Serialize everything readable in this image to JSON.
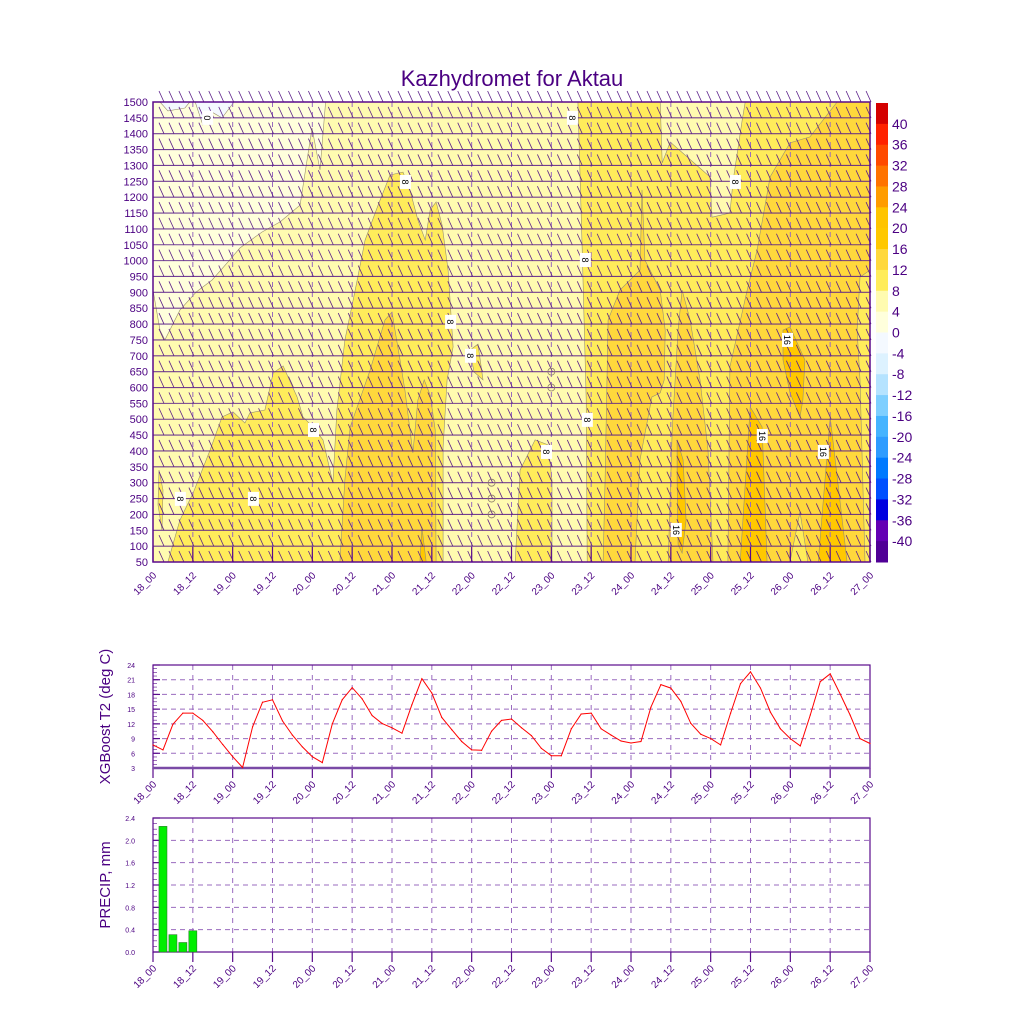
{
  "chart_data": [
    {
      "type": "heatmap",
      "subtype": "filled-contour-with-wind-barbs",
      "title": "Kazhydromet for Aktau",
      "x_tick_labels": [
        "18_00",
        "18_12",
        "19_00",
        "19_12",
        "20_00",
        "20_12",
        "21_00",
        "21_12",
        "22_00",
        "22_12",
        "23_00",
        "23_12",
        "24_00",
        "24_12",
        "25_00",
        "25_12",
        "26_00",
        "26_12",
        "27_00"
      ],
      "x_tick_step_hours": 12,
      "xlim_hours": [
        0,
        216
      ],
      "ylim": [
        50,
        1500
      ],
      "y_ticks": [
        50,
        100,
        150,
        200,
        250,
        300,
        350,
        400,
        450,
        500,
        550,
        600,
        650,
        700,
        750,
        800,
        850,
        900,
        950,
        1000,
        1050,
        1100,
        1150,
        1200,
        1250,
        1300,
        1350,
        1400,
        1450,
        1500
      ],
      "colorbar": {
        "labels": [
          "40",
          "36",
          "32",
          "28",
          "24",
          "20",
          "16",
          "12",
          "8",
          "4",
          "0",
          "-4",
          "-8",
          "-12",
          "-16",
          "-20",
          "-24",
          "-28",
          "-32",
          "-36",
          "-40"
        ],
        "colors": [
          "#d40000",
          "#ff2200",
          "#ff4a00",
          "#ff7300",
          "#ff9c00",
          "#ffc400",
          "#ffc800",
          "#ffd83c",
          "#ffec5a",
          "#fffbb0",
          "#ffffdc",
          "#f4f9ff",
          "#ddf2ff",
          "#b5e3ff",
          "#7ecfff",
          "#45b4ff",
          "#2e9cff",
          "#007aff",
          "#0050ff",
          "#0000e0",
          "#6400b4",
          "#500096"
        ]
      },
      "background_range": [
        4,
        8
      ],
      "contour_regions": [
        {
          "range": [
            0,
            4
          ],
          "polygons": [
            [
              [
                0,
                1500
              ],
              [
                52,
                1500
              ],
              [
                50.3,
                1286
              ],
              [
                47.9,
                1418
              ],
              [
                44.3,
                1175
              ],
              [
                38.3,
                1122
              ],
              [
                32.8,
                1090
              ],
              [
                26.2,
                1040
              ],
              [
                22.6,
                996
              ],
              [
                17.8,
                939
              ],
              [
                13,
                901
              ],
              [
                8.1,
                844
              ],
              [
                3.6,
                750
              ],
              [
                2.1,
                781
              ],
              [
                0,
                907
              ]
            ]
          ]
        },
        {
          "range": [
            -4,
            0
          ],
          "polygons": [
            [
              [
                2.1,
                1500
              ],
              [
                4.5,
                1472
              ],
              [
                9.6,
                1481
              ],
              [
                11.1,
                1500
              ]
            ],
            [
              [
                12.7,
                1500
              ],
              [
                15,
                1428
              ],
              [
                17.8,
                1468
              ],
              [
                20.8,
                1450
              ],
              [
                24.4,
                1500
              ]
            ]
          ]
        },
        {
          "range": [
            8,
            12
          ],
          "polygons": [
            [
              [
                4.5,
                50
              ],
              [
                8.1,
                182
              ],
              [
                12.1,
                268
              ],
              [
                17.2,
                403
              ],
              [
                20.8,
                507
              ],
              [
                24.1,
                523
              ],
              [
                27.7,
                488
              ],
              [
                29.2,
                520
              ],
              [
                33.7,
                529
              ],
              [
                36.2,
                646
              ],
              [
                39.2,
                668
              ],
              [
                43.4,
                570
              ],
              [
                45.2,
                507
              ],
              [
                48.2,
                476
              ],
              [
                51.2,
                435
              ],
              [
                54.2,
                299
              ],
              [
                55.4,
                529
              ],
              [
                57.8,
                750
              ],
              [
                60.9,
                907
              ],
              [
                63.9,
                1065
              ],
              [
                67.8,
                1175
              ],
              [
                71.4,
                1270
              ],
              [
                75.3,
                1279
              ],
              [
                77.4,
                1223
              ],
              [
                79.8,
                1128
              ],
              [
                82,
                1065
              ],
              [
                83.5,
                1160
              ],
              [
                85.3,
                1185
              ],
              [
                87.1,
                1112
              ],
              [
                88.9,
                970
              ],
              [
                90.4,
                728
              ],
              [
                88.6,
                624
              ],
              [
                87.4,
                412
              ],
              [
                87.4,
                50
              ]
            ],
            [
              [
                1.8,
                340
              ],
              [
                3,
                277
              ],
              [
                2.7,
                151
              ],
              [
                1.5,
                230
              ]
            ],
            [
              [
                95.5,
                718
              ],
              [
                97.9,
                737
              ],
              [
                99.4,
                624
              ],
              [
                96.7,
                649
              ]
            ],
            [
              [
                128,
                1500
              ],
              [
                216,
                1500
              ],
              [
                216,
                50
              ],
              [
                130.8,
                50
              ],
              [
                130.5,
                561
              ],
              [
                129.3,
                1034
              ]
            ],
            [
              [
                109.1,
                50
              ],
              [
                110.6,
                340
              ],
              [
                115.1,
                435
              ],
              [
                119,
                419
              ],
              [
                120.2,
                308
              ],
              [
                120.2,
                50
              ]
            ]
          ]
        },
        {
          "range": [
            4,
            8
          ],
          "polygons": [
            [
              [
                152.8,
                1500
              ],
              [
                153.4,
                1308
              ],
              [
                155.8,
                1374
              ],
              [
                167.8,
                1264
              ],
              [
                168.4,
                1137
              ],
              [
                173.8,
                1150
              ],
              [
                174.8,
                1254
              ],
              [
                177.5,
                1443
              ],
              [
                178.4,
                1500
              ]
            ]
          ]
        },
        {
          "range": [
            12,
            16
          ],
          "polygons": [
            [
              [
                56.3,
                50
              ],
              [
                57.8,
                309
              ],
              [
                59.4,
                476
              ],
              [
                65.4,
                655
              ],
              [
                69.9,
                813
              ],
              [
                72,
                838
              ],
              [
                74.4,
                687
              ],
              [
                75.9,
                592
              ],
              [
                78.3,
                394
              ],
              [
                79.8,
                561
              ],
              [
                81.7,
                624
              ],
              [
                83.5,
                576
              ],
              [
                85,
                466
              ],
              [
                85.3,
                50
              ]
            ],
            [
              [
                135.6,
                50
              ],
              [
                136.2,
                309
              ],
              [
                137.1,
                813
              ],
              [
                140.7,
                907
              ],
              [
                146.7,
                970
              ],
              [
                147.3,
                1223
              ],
              [
                148.2,
                1002
              ],
              [
                152.8,
                907
              ],
              [
                154.3,
                781
              ],
              [
                154,
                624
              ],
              [
                152.8,
                583
              ],
              [
                150.3,
                570
              ],
              [
                146.7,
                372
              ],
              [
                145.2,
                50
              ]
            ],
            [
              [
                155.2,
                50
              ],
              [
                156.4,
                466
              ],
              [
                158.2,
                781
              ],
              [
                159.4,
                907
              ],
              [
                161.8,
                813
              ],
              [
                164.8,
                624
              ],
              [
                167.2,
                403
              ],
              [
                168.7,
                50
              ]
            ],
            [
              [
                173.2,
                50
              ],
              [
                173.8,
                665
              ],
              [
                179,
                907
              ],
              [
                182,
                1033
              ],
              [
                185.9,
                1264
              ],
              [
                191.9,
                1371
              ],
              [
                197.9,
                1390
              ],
              [
                206.1,
                1500
              ],
              [
                216,
                1500
              ],
              [
                216,
                970
              ],
              [
                213,
                948
              ],
              [
                212.1,
                781
              ],
              [
                213,
                624
              ],
              [
                214.5,
                50
              ],
              [
                197.3,
                50
              ],
              [
                194.9,
                208
              ],
              [
                191.9,
                50
              ]
            ]
          ]
        },
        {
          "range": [
            16,
            20
          ],
          "polygons": [
            [
              [
                80.4,
                50
              ],
              [
                81,
                160
              ],
              [
                82.3,
                50
              ]
            ],
            [
              [
                157.9,
                435
              ],
              [
                159.7,
                372
              ],
              [
                160.6,
                182
              ],
              [
                159.4,
                78
              ],
              [
                158.2,
                104
              ],
              [
                157.9,
                309
              ]
            ],
            [
              [
                189.8,
                781
              ],
              [
                191.9,
                791
              ],
              [
                196.4,
                687
              ],
              [
                195.8,
                561
              ],
              [
                194.9,
                507
              ],
              [
                191.9,
                583
              ],
              [
                189.8,
                687
              ]
            ],
            [
              [
                176.9,
                50
              ],
              [
                179.9,
                539
              ],
              [
                183.5,
                476
              ],
              [
                185,
                50
              ]
            ],
            [
              [
                200.4,
                50
              ],
              [
                204,
                507
              ],
              [
                209.1,
                50
              ]
            ]
          ]
        }
      ],
      "contour_labels": [
        {
          "text": "0",
          "hour": 16.3,
          "level": 1450
        },
        {
          "text": "8",
          "hour": 75.9,
          "level": 1248
        },
        {
          "text": "8",
          "hour": 126.2,
          "level": 1450
        },
        {
          "text": "8",
          "hour": 130.1,
          "level": 1002
        },
        {
          "text": "8",
          "hour": 89.5,
          "level": 807
        },
        {
          "text": "8",
          "hour": 95.5,
          "level": 700
        },
        {
          "text": "8",
          "hour": 48.2,
          "level": 466
        },
        {
          "text": "8",
          "hour": 8.1,
          "level": 249
        },
        {
          "text": "8",
          "hour": 30.1,
          "level": 249
        },
        {
          "text": "8",
          "hour": 118.4,
          "level": 397
        },
        {
          "text": "8",
          "hour": 130.7,
          "level": 498
        },
        {
          "text": "8",
          "hour": 175.3,
          "level": 1248
        },
        {
          "text": "16",
          "hour": 157.5,
          "level": 151
        },
        {
          "text": "16",
          "hour": 183.4,
          "level": 447
        },
        {
          "text": "16",
          "hour": 201.8,
          "level": 397
        },
        {
          "text": "16",
          "hour": 191,
          "level": 750
        }
      ],
      "calm_points": [
        [
          102,
          300
        ],
        [
          102,
          250
        ],
        [
          102,
          200
        ],
        [
          120,
          650
        ],
        [
          120,
          600
        ]
      ]
    },
    {
      "type": "line",
      "ylabel": "XGBoost T2 (deg C)",
      "ylim": [
        3,
        24
      ],
      "y_ticks": [
        "3",
        "6",
        "9",
        "12",
        "15",
        "18",
        "21",
        "24"
      ],
      "x_tick_labels": [
        "18_00",
        "18_12",
        "19_00",
        "19_12",
        "20_00",
        "20_12",
        "21_00",
        "21_12",
        "22_00",
        "22_12",
        "23_00",
        "23_12",
        "24_00",
        "24_12",
        "25_00",
        "25_12",
        "26_00",
        "26_12",
        "27_00"
      ],
      "x_step_hours": 3,
      "color": "#ff0000",
      "values": [
        7.7,
        6.7,
        11.9,
        14.2,
        14.2,
        12.7,
        10.4,
        7.8,
        5.3,
        3.1,
        11.4,
        16.4,
        16.9,
        12.6,
        9.7,
        7.3,
        5.3,
        4.1,
        12.0,
        16.9,
        19.4,
        17.1,
        13.7,
        12.1,
        11.2,
        10.1,
        15.9,
        21.2,
        18.3,
        13.3,
        10.8,
        8.4,
        6.7,
        6.6,
        10.5,
        12.7,
        13.0,
        11.2,
        9.6,
        7.0,
        5.5,
        5.5,
        11.0,
        14.0,
        14.2,
        11.0,
        9.7,
        8.5,
        8.1,
        8.4,
        15.4,
        20.0,
        19.3,
        16.6,
        12.1,
        9.9,
        9.0,
        7.7,
        14.2,
        20.2,
        22.6,
        19.3,
        14.4,
        11.0,
        9.0,
        7.5,
        13.8,
        20.6,
        22.2,
        18.1,
        13.8,
        9.0,
        8.0
      ]
    },
    {
      "type": "bar",
      "ylabel": "PRECIP, mm",
      "ylim": [
        0,
        2.4
      ],
      "y_ticks": [
        "0.0",
        "0.4",
        "0.8",
        "1.2",
        "1.6",
        "2.0",
        "2.4"
      ],
      "x_tick_labels": [
        "18_00",
        "18_12",
        "19_00",
        "19_12",
        "20_00",
        "20_12",
        "21_00",
        "21_12",
        "22_00",
        "22_12",
        "23_00",
        "23_12",
        "24_00",
        "24_12",
        "25_00",
        "25_12",
        "26_00",
        "26_12",
        "27_00"
      ],
      "color": "#00ee00",
      "bars": [
        {
          "hour": 3,
          "value": 2.25
        },
        {
          "hour": 6,
          "value": 0.31
        },
        {
          "hour": 9,
          "value": 0.17
        },
        {
          "hour": 12,
          "value": 0.38
        }
      ]
    }
  ]
}
